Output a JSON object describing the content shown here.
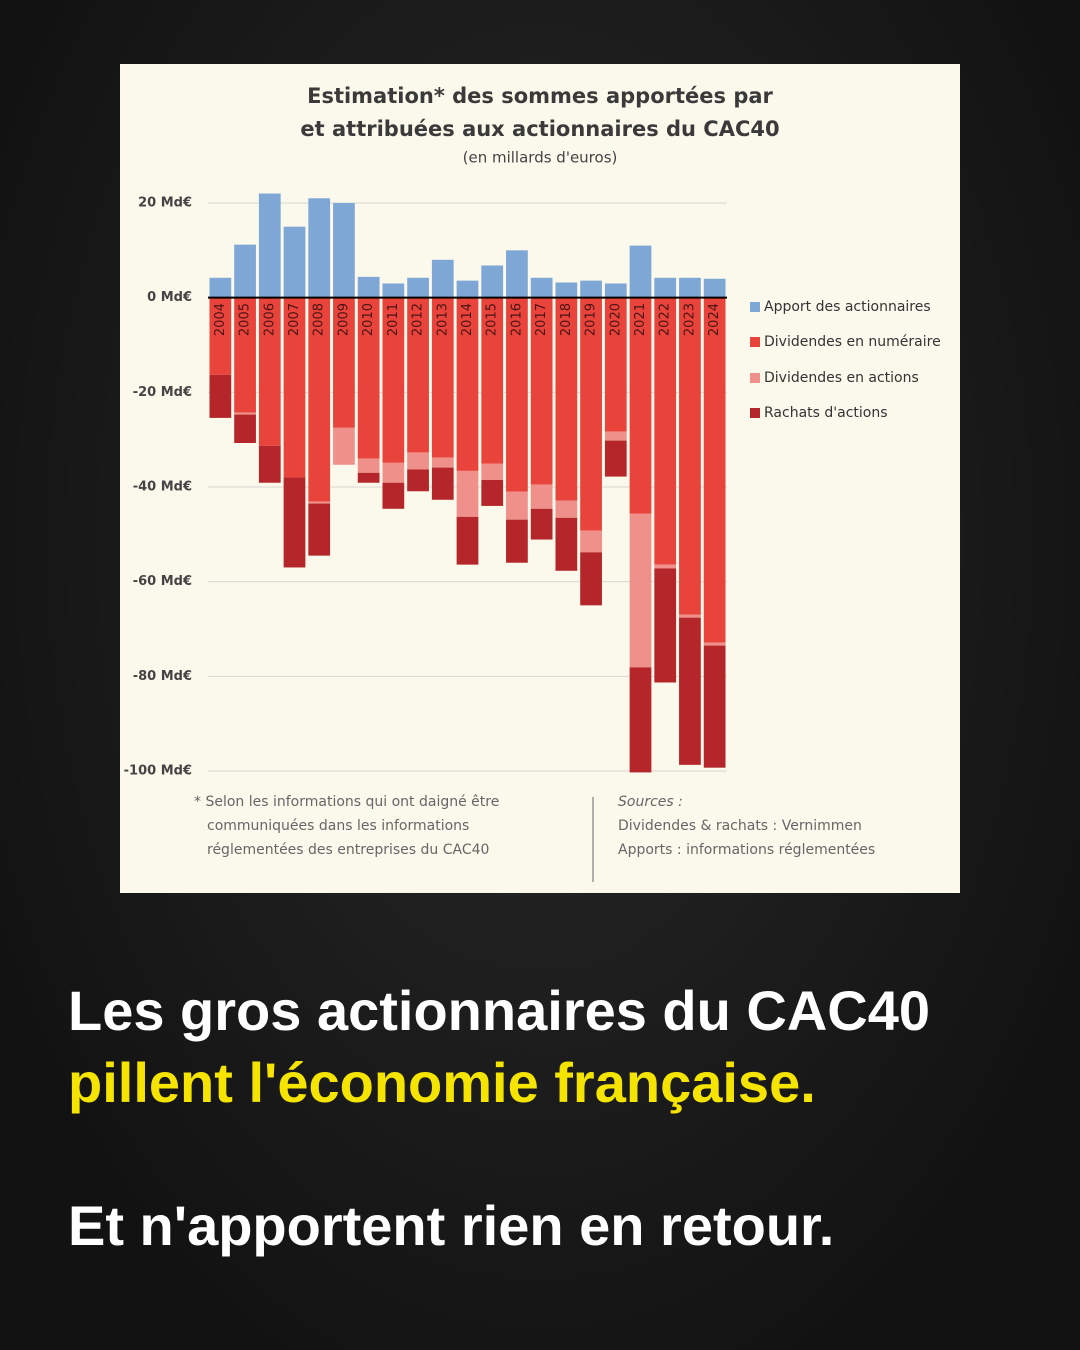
{
  "chart_data": {
    "type": "stacked_bar",
    "title": [
      "Estimation* des sommes apportées par",
      "et attribuées aux actionnaires du CAC40"
    ],
    "subtitle": "(en millards d'euros)",
    "categories": [
      "2004",
      "2005",
      "2006",
      "2007",
      "2008",
      "2009",
      "2010",
      "2011",
      "2012",
      "2013",
      "2014",
      "2015",
      "2016",
      "2017",
      "2018",
      "2019",
      "2020",
      "2021",
      "2022",
      "2023",
      "2024"
    ],
    "series": [
      {
        "name": "Apport des actionnaires",
        "color": "#7fa7d6",
        "values": [
          4.2,
          11.2,
          22,
          15,
          21,
          20,
          4.4,
          3,
          4.2,
          8,
          3.6,
          6.8,
          10,
          4.2,
          3.2,
          3.6,
          3,
          11,
          4.2,
          4.2,
          4
        ]
      },
      {
        "name": "Dividendes en numéraire",
        "color": "#e8443c",
        "values": [
          -16.3,
          -24.3,
          -31.3,
          -38,
          -43.1,
          -27.5,
          -34,
          -34.9,
          -32.7,
          -33.8,
          -36.6,
          -35.1,
          -41,
          -39.5,
          -42.9,
          -49.2,
          -28.3,
          -45.6,
          -56.4,
          -67,
          -72.9
        ]
      },
      {
        "name": "Dividendes en actions",
        "color": "#f0908a",
        "values": [
          0,
          -0.4,
          0,
          0,
          -0.4,
          -7.8,
          -3,
          -4.2,
          -3.6,
          -2.1,
          -9.7,
          -3.4,
          -5.9,
          -5.1,
          -3.6,
          -4.6,
          -1.9,
          -32.5,
          -0.8,
          -0.6,
          -0.6
        ]
      },
      {
        "name": "Rachats d'actions",
        "color": "#b5262a",
        "values": [
          -9.1,
          -6,
          -7.8,
          -19,
          -11,
          0,
          -2.1,
          -5.5,
          -4.6,
          -6.8,
          -10.1,
          -5.5,
          -9.1,
          -6.5,
          -11.2,
          -11.2,
          -7.6,
          -22.2,
          -24.1,
          -31.1,
          -25.8
        ]
      }
    ],
    "ylim": [
      -100,
      20
    ],
    "yticks": [
      {
        "value": 20,
        "label": "20 Md€"
      },
      {
        "value": 0,
        "label": "0 Md€"
      },
      {
        "value": -20,
        "label": "-20 Md€"
      },
      {
        "value": -40,
        "label": "-40 Md€"
      },
      {
        "value": -60,
        "label": "-60 Md€"
      },
      {
        "value": -80,
        "label": "-80 Md€"
      },
      {
        "value": -100,
        "label": "-100 Md€"
      }
    ],
    "grid": true,
    "legend": "right",
    "footnote": [
      "* Selon les informations qui ont daigné être",
      "communiquées  dans les informations",
      "réglementées  des entreprises du CAC40"
    ],
    "sources": [
      "Sources :",
      "Dividendes & rachats : Vernimmen",
      "Apports :  informations réglementées"
    ]
  },
  "caption": {
    "line1": "Les gros actionnaires du CAC40",
    "line2": "pillent l'économie française.",
    "line3": "Et n'apportent rien en retour."
  }
}
